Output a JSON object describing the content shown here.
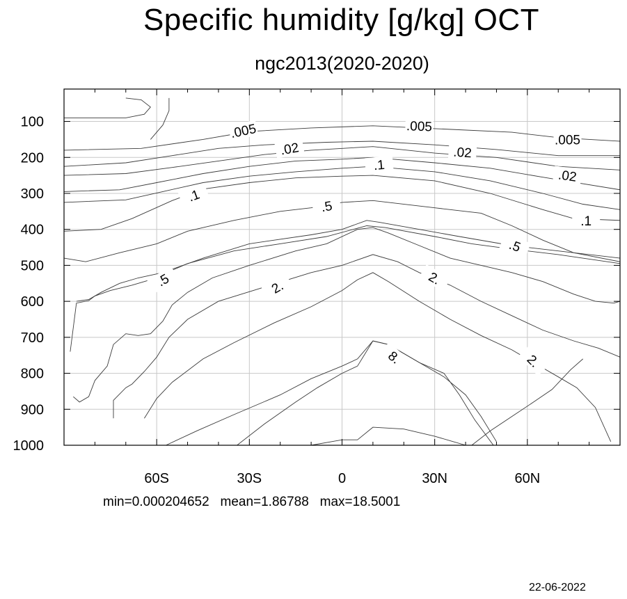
{
  "chart_data": {
    "type": "contour",
    "title": "Specific humidity [g/kg] OCT",
    "subtitle": "ngc2013(2020-2020)",
    "xlim": [
      -90,
      90
    ],
    "ylim": [
      1000,
      10
    ],
    "x_ticks": [
      {
        "value": -60,
        "label": "60S"
      },
      {
        "value": -30,
        "label": "30S"
      },
      {
        "value": 0,
        "label": "0"
      },
      {
        "value": 30,
        "label": "30N"
      },
      {
        "value": 60,
        "label": "60N"
      }
    ],
    "y_ticks": [
      {
        "value": 100,
        "label": "100"
      },
      {
        "value": 200,
        "label": "200"
      },
      {
        "value": 300,
        "label": "300"
      },
      {
        "value": 400,
        "label": "400"
      },
      {
        "value": 500,
        "label": "500"
      },
      {
        "value": 600,
        "label": "600"
      },
      {
        "value": 700,
        "label": "700"
      },
      {
        "value": 800,
        "label": "800"
      },
      {
        "value": 900,
        "label": "900"
      },
      {
        "value": 1000,
        "label": "1000"
      }
    ],
    "grid": true,
    "contours": [
      {
        "points": [
          [
            -90,
            90
          ],
          [
            -70,
            90
          ],
          [
            -64,
            80
          ],
          [
            -62,
            60
          ],
          [
            -65,
            40
          ],
          [
            -70,
            35
          ]
        ]
      },
      {
        "points": [
          [
            -56,
            35
          ],
          [
            -56,
            70
          ],
          [
            -58,
            110
          ],
          [
            -62,
            150
          ]
        ]
      },
      {
        "points": [
          [
            -90,
            180
          ],
          [
            -65,
            175
          ],
          [
            -45,
            150
          ],
          [
            -30,
            128
          ],
          [
            -10,
            118
          ],
          [
            10,
            112
          ],
          [
            30,
            120
          ],
          [
            55,
            130
          ],
          [
            70,
            145
          ],
          [
            90,
            155
          ]
        ]
      },
      {
        "points": [
          [
            -90,
            225
          ],
          [
            -70,
            215
          ],
          [
            -55,
            195
          ],
          [
            -40,
            175
          ],
          [
            -25,
            165
          ],
          [
            -5,
            158
          ],
          [
            10,
            155
          ],
          [
            30,
            165
          ],
          [
            50,
            178
          ],
          [
            70,
            195
          ],
          [
            90,
            195
          ]
        ]
      },
      {
        "points": [
          [
            -90,
            250
          ],
          [
            -70,
            245
          ],
          [
            -55,
            228
          ],
          [
            -40,
            210
          ],
          [
            -25,
            192
          ],
          [
            -10,
            180
          ],
          [
            10,
            170
          ],
          [
            30,
            188
          ],
          [
            50,
            200
          ],
          [
            70,
            225
          ],
          [
            90,
            235
          ]
        ]
      },
      {
        "points": [
          [
            -90,
            295
          ],
          [
            -72,
            290
          ],
          [
            -60,
            270
          ],
          [
            -45,
            245
          ],
          [
            -30,
            225
          ],
          [
            -15,
            210
          ],
          [
            0,
            205
          ],
          [
            10,
            200
          ],
          [
            30,
            215
          ],
          [
            48,
            230
          ],
          [
            65,
            255
          ],
          [
            90,
            290
          ]
        ]
      },
      {
        "points": [
          [
            -90,
            325
          ],
          [
            -70,
            318
          ],
          [
            -58,
            295
          ],
          [
            -45,
            270
          ],
          [
            -30,
            252
          ],
          [
            -15,
            240
          ],
          [
            0,
            230
          ],
          [
            10,
            225
          ],
          [
            30,
            240
          ],
          [
            48,
            265
          ],
          [
            65,
            300
          ],
          [
            78,
            330
          ],
          [
            90,
            345
          ]
        ]
      },
      {
        "points": [
          [
            -90,
            405
          ],
          [
            -78,
            400
          ],
          [
            -68,
            370
          ],
          [
            -55,
            320
          ],
          [
            -45,
            288
          ],
          [
            -30,
            270
          ],
          [
            -15,
            257
          ],
          [
            0,
            252
          ],
          [
            10,
            250
          ],
          [
            30,
            265
          ],
          [
            48,
            300
          ],
          [
            65,
            345
          ],
          [
            75,
            370
          ],
          [
            90,
            375
          ]
        ]
      },
      {
        "points": [
          [
            -90,
            480
          ],
          [
            -83,
            490
          ],
          [
            -72,
            465
          ],
          [
            -60,
            440
          ],
          [
            -50,
            405
          ],
          [
            -35,
            375
          ],
          [
            -20,
            350
          ],
          [
            -10,
            340
          ],
          [
            0,
            325
          ],
          [
            10,
            320
          ],
          [
            30,
            340
          ],
          [
            45,
            355
          ],
          [
            55,
            390
          ],
          [
            65,
            430
          ],
          [
            75,
            465
          ],
          [
            90,
            490
          ]
        ]
      },
      {
        "points": [
          [
            -86,
            600
          ],
          [
            -82,
            595
          ],
          [
            -78,
            575
          ],
          [
            -72,
            550
          ],
          [
            -66,
            535
          ],
          [
            -58,
            520
          ],
          [
            -45,
            480
          ],
          [
            -30,
            440
          ],
          [
            -10,
            415
          ],
          [
            0,
            400
          ],
          [
            8,
            375
          ],
          [
            12,
            380
          ],
          [
            25,
            400
          ],
          [
            38,
            420
          ],
          [
            55,
            445
          ],
          [
            70,
            460
          ],
          [
            90,
            480
          ]
        ]
      },
      {
        "points": [
          [
            -88,
            740
          ],
          [
            -86,
            605
          ],
          [
            -82,
            598
          ],
          [
            -80,
            585
          ],
          [
            -75,
            570
          ],
          [
            -68,
            555
          ],
          [
            -62,
            540
          ],
          [
            -50,
            495
          ],
          [
            -35,
            460
          ],
          [
            -20,
            440
          ],
          [
            -5,
            420
          ],
          [
            8,
            390
          ],
          [
            14,
            395
          ],
          [
            30,
            420
          ],
          [
            42,
            440
          ],
          [
            55,
            455
          ],
          [
            70,
            470
          ],
          [
            90,
            495
          ]
        ]
      },
      {
        "points": [
          [
            -87,
            865
          ],
          [
            -85,
            880
          ],
          [
            -82,
            865
          ],
          [
            -80,
            820
          ],
          [
            -76,
            780
          ],
          [
            -74,
            720
          ],
          [
            -70,
            690
          ],
          [
            -66,
            695
          ],
          [
            -62,
            690
          ],
          [
            -58,
            655
          ],
          [
            -55,
            610
          ],
          [
            -50,
            575
          ],
          [
            -42,
            535
          ],
          [
            -30,
            500
          ],
          [
            -15,
            460
          ],
          [
            -5,
            440
          ],
          [
            5,
            400
          ],
          [
            10,
            395
          ],
          [
            15,
            410
          ],
          [
            25,
            445
          ],
          [
            35,
            480
          ],
          [
            45,
            500
          ],
          [
            55,
            520
          ],
          [
            65,
            545
          ],
          [
            75,
            580
          ],
          [
            82,
            600
          ],
          [
            88,
            605
          ],
          [
            90,
            600
          ]
        ]
      },
      {
        "points": [
          [
            -74,
            925
          ],
          [
            -74,
            875
          ],
          [
            -70,
            840
          ],
          [
            -68,
            830
          ],
          [
            -64,
            795
          ],
          [
            -60,
            755
          ],
          [
            -56,
            700
          ],
          [
            -50,
            650
          ],
          [
            -40,
            600
          ],
          [
            -25,
            560
          ],
          [
            -10,
            520
          ],
          [
            0,
            500
          ],
          [
            10,
            470
          ],
          [
            18,
            490
          ],
          [
            25,
            520
          ],
          [
            35,
            555
          ],
          [
            45,
            600
          ],
          [
            55,
            640
          ],
          [
            65,
            680
          ],
          [
            75,
            710
          ],
          [
            83,
            730
          ],
          [
            90,
            755
          ]
        ]
      },
      {
        "points": [
          [
            -64,
            925
          ],
          [
            -60,
            870
          ],
          [
            -55,
            825
          ],
          [
            -45,
            760
          ],
          [
            -35,
            715
          ],
          [
            -22,
            660
          ],
          [
            -10,
            615
          ],
          [
            0,
            570
          ],
          [
            5,
            540
          ],
          [
            10,
            520
          ],
          [
            15,
            545
          ],
          [
            25,
            600
          ],
          [
            35,
            650
          ],
          [
            45,
            695
          ],
          [
            55,
            735
          ],
          [
            62,
            770
          ],
          [
            70,
            810
          ],
          [
            76,
            840
          ],
          [
            82,
            895
          ],
          [
            87,
            990
          ]
        ]
      },
      {
        "points": [
          [
            -57,
            1000
          ],
          [
            -47,
            960
          ],
          [
            -35,
            915
          ],
          [
            -20,
            860
          ],
          [
            -10,
            815
          ],
          [
            0,
            780
          ],
          [
            5,
            760
          ],
          [
            10,
            710
          ],
          [
            15,
            720
          ],
          [
            25,
            770
          ],
          [
            33,
            810
          ],
          [
            40,
            860
          ],
          [
            45,
            920
          ],
          [
            50,
            990
          ]
        ]
      },
      {
        "points": [
          [
            -34,
            1000
          ],
          [
            -25,
            940
          ],
          [
            -15,
            880
          ],
          [
            -8,
            840
          ],
          [
            0,
            800
          ],
          [
            5,
            780
          ],
          [
            10,
            710
          ],
          [
            15,
            720
          ],
          [
            25,
            770
          ],
          [
            33,
            800
          ],
          [
            38,
            860
          ],
          [
            43,
            930
          ],
          [
            49,
            1000
          ]
        ]
      },
      {
        "points": [
          [
            -10,
            1000
          ],
          [
            0,
            985
          ],
          [
            5,
            985
          ],
          [
            10,
            950
          ],
          [
            20,
            955
          ],
          [
            30,
            975
          ],
          [
            40,
            1000
          ]
        ]
      },
      {
        "points": [
          [
            42,
            1000
          ],
          [
            48,
            960
          ],
          [
            55,
            920
          ],
          [
            62,
            880
          ],
          [
            68,
            845
          ],
          [
            74,
            790
          ],
          [
            78,
            760
          ]
        ]
      }
    ],
    "contour_labels": [
      {
        "text": ".005",
        "x": -32,
        "y": 125,
        "angle": -12
      },
      {
        "text": ".005",
        "x": 25,
        "y": 112,
        "angle": 2
      },
      {
        "text": ".005",
        "x": 73,
        "y": 150,
        "angle": 0
      },
      {
        "text": ".02",
        "x": -17,
        "y": 175,
        "angle": -10
      },
      {
        "text": ".02",
        "x": 39,
        "y": 185,
        "angle": 4
      },
      {
        "text": ".02",
        "x": 73,
        "y": 250,
        "angle": 8
      },
      {
        "text": ".1",
        "x": 12,
        "y": 220,
        "angle": -5
      },
      {
        "text": ".1",
        "x": -48,
        "y": 305,
        "angle": -20
      },
      {
        "text": ".1",
        "x": 79,
        "y": 375,
        "angle": 0
      },
      {
        "text": ".5",
        "x": -5,
        "y": 335,
        "angle": -10
      },
      {
        "text": ".5",
        "x": 56,
        "y": 445,
        "angle": 20
      },
      {
        "text": ".5",
        "x": -58,
        "y": 540,
        "angle": -30
      },
      {
        "text": "2.",
        "x": -21,
        "y": 560,
        "angle": -30
      },
      {
        "text": "2.",
        "x": 30,
        "y": 535,
        "angle": 30
      },
      {
        "text": "2.",
        "x": 62,
        "y": 765,
        "angle": 45
      },
      {
        "text": "8.",
        "x": 17,
        "y": 755,
        "angle": 40
      }
    ]
  },
  "stats_text": "min=0.000204652   mean=1.86788   max=18.5001",
  "date_text": "22-06-2022"
}
